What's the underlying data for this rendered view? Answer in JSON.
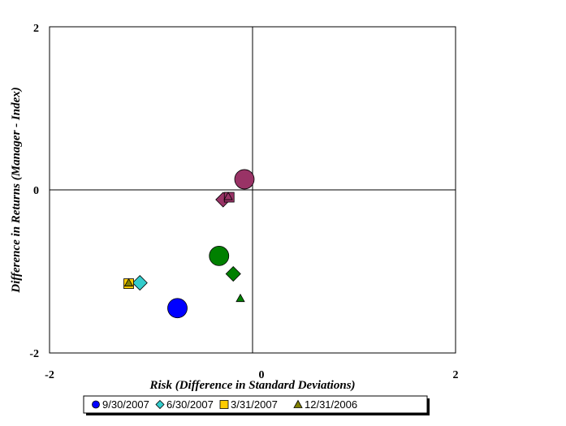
{
  "chart_data": {
    "type": "scatter",
    "xlabel": "Risk (Difference in Standard Deviations)",
    "ylabel": "Difference in Returns (Manager - Index)",
    "xlim": [
      -2,
      2
    ],
    "ylim": [
      -2,
      2
    ],
    "x_ticks": [
      "-2",
      "0",
      "2"
    ],
    "y_ticks": [
      "2",
      "0",
      "-2"
    ],
    "grid": false,
    "legend_position": "bottom",
    "series": [
      {
        "name": "9/30/2007",
        "marker": "circle",
        "color": "#0000ff",
        "points": [
          {
            "x": -0.74,
            "y": -1.45,
            "color": "#0000ff"
          },
          {
            "x": -0.33,
            "y": -0.81,
            "color": "#008000"
          },
          {
            "x": -0.08,
            "y": 0.13,
            "color": "#993366"
          }
        ]
      },
      {
        "name": "6/30/2007",
        "marker": "diamond",
        "color": "#33cccc",
        "points": [
          {
            "x": -1.11,
            "y": -1.14,
            "color": "#33cccc"
          },
          {
            "x": -0.19,
            "y": -1.03,
            "color": "#008000"
          },
          {
            "x": -0.29,
            "y": -0.12,
            "color": "#993366"
          }
        ]
      },
      {
        "name": "3/31/2007",
        "marker": "square",
        "color": "#ffcc00",
        "points": [
          {
            "x": -1.22,
            "y": -1.15,
            "color": "#ffcc00"
          },
          {
            "x": -0.23,
            "y": -0.09,
            "color": "#993366"
          }
        ]
      },
      {
        "name": "12/31/2006",
        "marker": "triangle",
        "color": "#808000",
        "points": [
          {
            "x": -1.22,
            "y": -1.14,
            "color": "#808000"
          },
          {
            "x": -0.12,
            "y": -1.33,
            "color": "#008000"
          },
          {
            "x": -0.24,
            "y": -0.08,
            "color": "#993366"
          }
        ]
      }
    ]
  }
}
